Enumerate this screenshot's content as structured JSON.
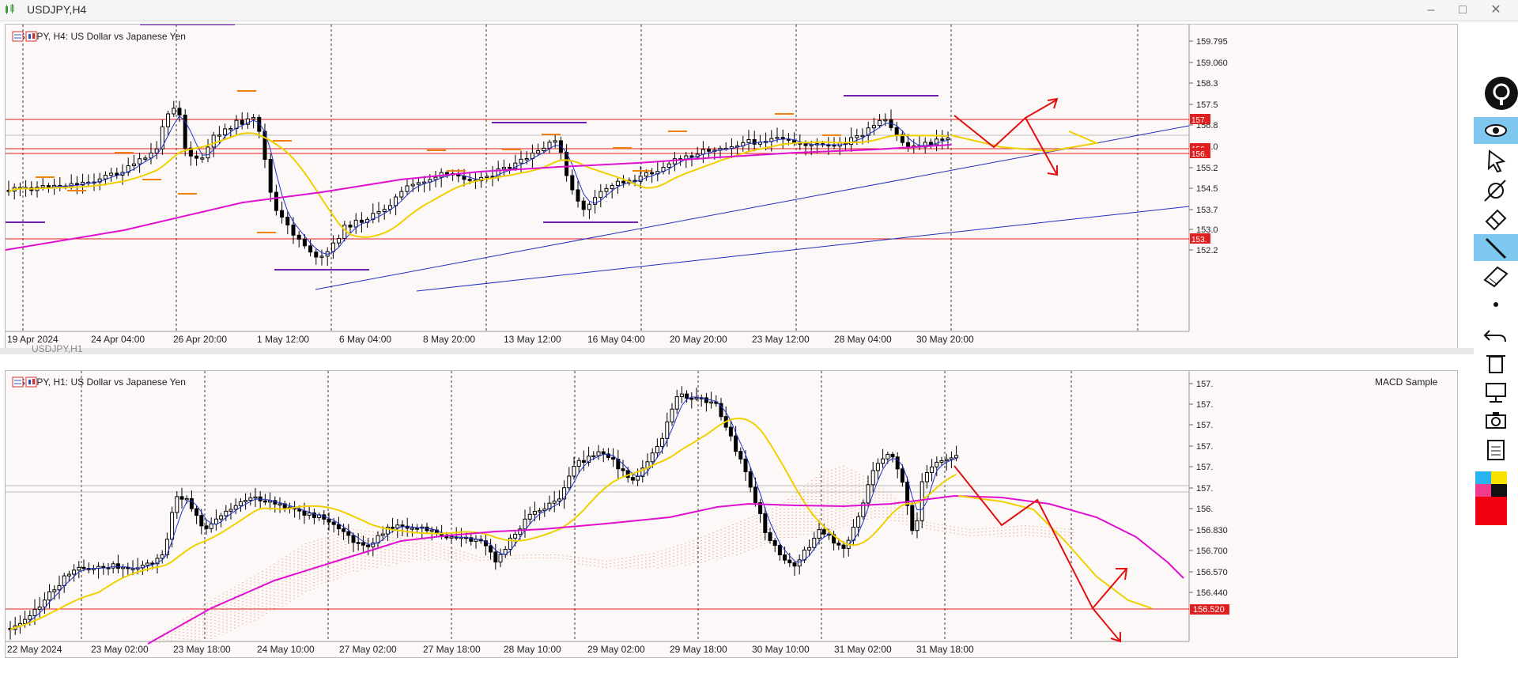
{
  "window": {
    "title": "USDJPY,H4"
  },
  "top_chart": {
    "label": "USDJPY, H4:  US Dollar vs Japanese Yen",
    "price_ticks": [
      "159.795",
      "159.060",
      "158.3",
      "157.5",
      "156.8",
      "156.0",
      "155.2",
      "154.5",
      "153.7",
      "153.0",
      "152.2"
    ],
    "price_tags": [
      "157.",
      "156.",
      "156.",
      "153."
    ],
    "time_labels": [
      "19 Apr 2024",
      "24 Apr 04:00",
      "26 Apr 20:00",
      "1 May 12:00",
      "6 May 04:00",
      "8 May 20:00",
      "13 May 12:00",
      "16 May 04:00",
      "20 May 20:00",
      "23 May 12:00",
      "28 May 04:00",
      "30 May 20:00"
    ]
  },
  "bottom_chart": {
    "window_title": "USDJPY,H1",
    "label": "USDJPY, H1:  US Dollar vs Japanese Yen",
    "indicator": "MACD Sample",
    "price_ticks": [
      "157.",
      "157.",
      "157.",
      "157.",
      "157.",
      "157.",
      "156.",
      "156.830",
      "156.700",
      "156.570",
      "156.440"
    ],
    "current_price": "156.520",
    "time_labels": [
      "22 May 2024",
      "23 May 02:00",
      "23 May 18:00",
      "24 May 10:00",
      "27 May 02:00",
      "27 May 18:00",
      "28 May 10:00",
      "29 May 02:00",
      "29 May 18:00",
      "30 May 10:00",
      "31 May 02:00",
      "31 May 18:00"
    ]
  },
  "toolbar": {
    "items": [
      "eye-icon",
      "cursor-icon",
      "crosshair-icon",
      "eraser-icon",
      "line-icon",
      "ruler-icon",
      "dot-icon",
      "undo-icon",
      "trash-icon",
      "monitor-icon",
      "camera-icon",
      "clipboard-icon"
    ]
  },
  "colors": {
    "candle": "#000000",
    "ma_fast": "#1f33cc",
    "ma_mid": "#f0d000",
    "ma_slow": "#e010d0",
    "level": "#e02020",
    "cloud": "#e07030",
    "arrow": "#e01010",
    "background": "#fcf8f8"
  }
}
